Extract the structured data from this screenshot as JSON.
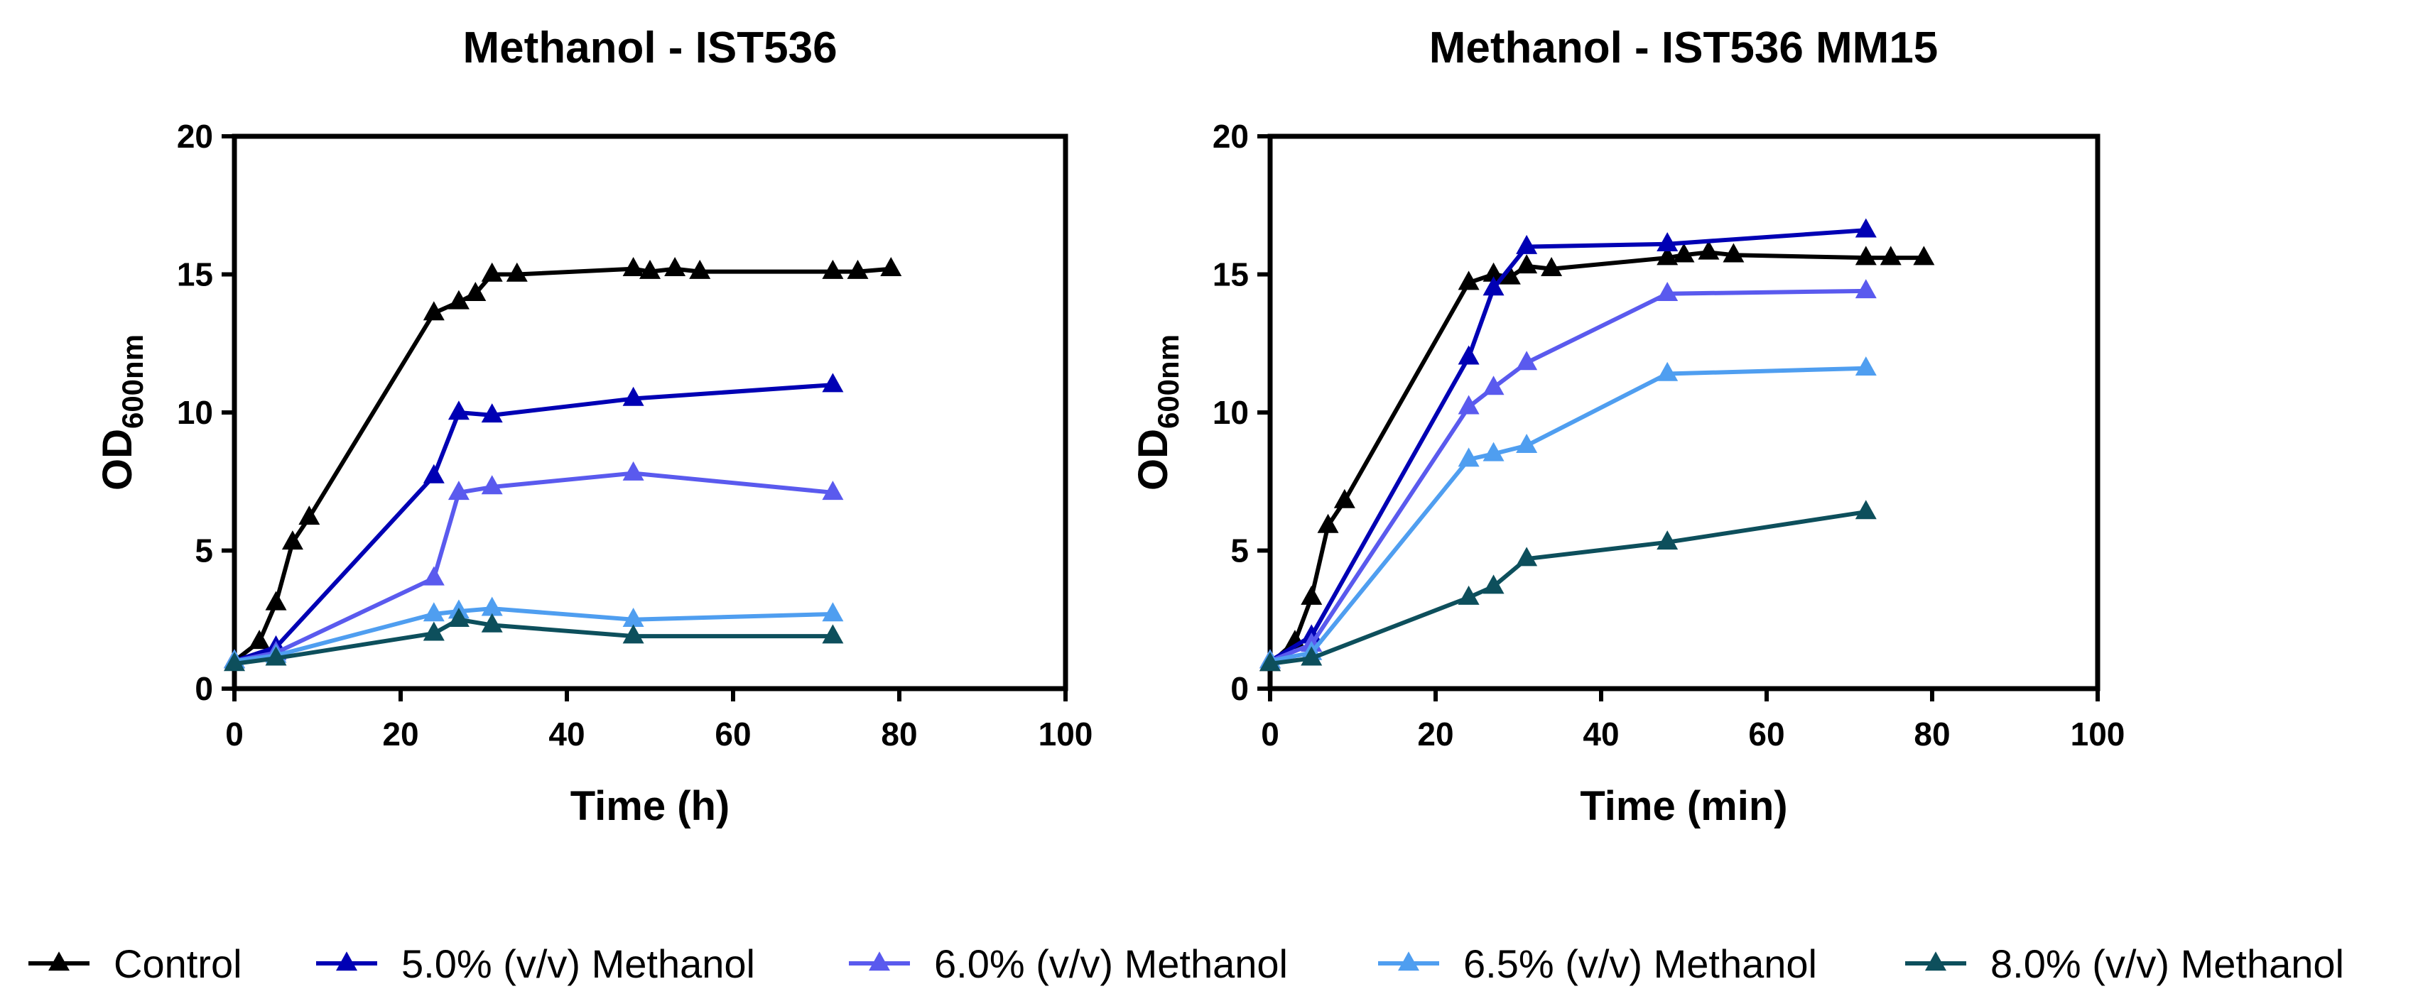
{
  "colors": {
    "control": "#000000",
    "m50": "#0000b4",
    "m60": "#5a5aee",
    "m65": "#4f9ef0",
    "m80": "#0d4f5c"
  },
  "legend": [
    {
      "key": "control",
      "label": "Control"
    },
    {
      "key": "m50",
      "label": "5.0% (v/v) Methanol"
    },
    {
      "key": "m60",
      "label": "6.0% (v/v) Methanol"
    },
    {
      "key": "m65",
      "label": "6.5% (v/v) Methanol"
    },
    {
      "key": "m80",
      "label": "8.0% (v/v) Methanol"
    }
  ],
  "chart_data": [
    {
      "type": "line",
      "title": "Methanol - IST536",
      "xlabel": "Time (h)",
      "ylabel_main": "OD",
      "ylabel_sub": "600nm",
      "xlim": [
        0,
        100
      ],
      "ylim": [
        0,
        20
      ],
      "xticks": [
        0,
        20,
        40,
        60,
        80,
        100
      ],
      "yticks": [
        0,
        5,
        10,
        15,
        20
      ],
      "grid": false,
      "series": [
        {
          "key": "control",
          "name": "Control",
          "x": [
            0,
            3,
            5,
            7,
            9,
            24,
            27,
            29,
            31,
            34,
            48,
            50,
            53,
            56,
            72,
            75,
            79
          ],
          "y": [
            1.0,
            1.7,
            3.1,
            5.3,
            6.2,
            13.6,
            14.0,
            14.3,
            15.0,
            15.0,
            15.2,
            15.1,
            15.2,
            15.1,
            15.1,
            15.1,
            15.2
          ]
        },
        {
          "key": "m50",
          "name": "5.0% (v/v) Methanol",
          "x": [
            0,
            5,
            24,
            27,
            31,
            48,
            72
          ],
          "y": [
            1.0,
            1.5,
            7.7,
            10.0,
            9.9,
            10.5,
            11.0
          ]
        },
        {
          "key": "m60",
          "name": "6.0% (v/v) Methanol",
          "x": [
            0,
            5,
            24,
            27,
            31,
            48,
            72
          ],
          "y": [
            1.0,
            1.3,
            4.0,
            7.1,
            7.3,
            7.8,
            7.1
          ]
        },
        {
          "key": "m65",
          "name": "6.5% (v/v) Methanol",
          "x": [
            0,
            5,
            24,
            27,
            31,
            48,
            72
          ],
          "y": [
            1.0,
            1.2,
            2.7,
            2.8,
            2.9,
            2.5,
            2.7
          ]
        },
        {
          "key": "m80",
          "name": "8.0% (v/v) Methanol",
          "x": [
            0,
            5,
            24,
            27,
            31,
            48,
            72
          ],
          "y": [
            0.9,
            1.1,
            2.0,
            2.5,
            2.3,
            1.9,
            1.9
          ]
        }
      ]
    },
    {
      "type": "line",
      "title": "Methanol - IST536 MM15",
      "xlabel": "Time (min)",
      "ylabel_main": "OD",
      "ylabel_sub": "600nm",
      "xlim": [
        0,
        100
      ],
      "ylim": [
        0,
        20
      ],
      "xticks": [
        0,
        20,
        40,
        60,
        80,
        100
      ],
      "yticks": [
        0,
        5,
        10,
        15,
        20
      ],
      "grid": false,
      "series": [
        {
          "key": "control",
          "name": "Control",
          "x": [
            0,
            3,
            5,
            7,
            9,
            24,
            27,
            29,
            31,
            34,
            48,
            50,
            53,
            56,
            72,
            75,
            79
          ],
          "y": [
            0.9,
            1.7,
            3.3,
            5.9,
            6.8,
            14.7,
            15.0,
            14.9,
            15.3,
            15.2,
            15.6,
            15.7,
            15.8,
            15.7,
            15.6,
            15.6,
            15.6
          ]
        },
        {
          "key": "m50",
          "name": "5.0% (v/v) Methanol",
          "x": [
            0,
            5,
            24,
            27,
            31,
            48,
            72
          ],
          "y": [
            1.0,
            1.9,
            12.0,
            14.5,
            16.0,
            16.1,
            16.6
          ]
        },
        {
          "key": "m60",
          "name": "6.0% (v/v) Methanol",
          "x": [
            0,
            5,
            24,
            27,
            31,
            48,
            72
          ],
          "y": [
            1.0,
            1.6,
            10.2,
            10.9,
            11.8,
            14.3,
            14.4
          ]
        },
        {
          "key": "m65",
          "name": "6.5% (v/v) Methanol",
          "x": [
            0,
            5,
            24,
            27,
            31,
            48,
            72
          ],
          "y": [
            1.0,
            1.3,
            8.3,
            8.5,
            8.8,
            11.4,
            11.6
          ]
        },
        {
          "key": "m80",
          "name": "8.0% (v/v) Methanol",
          "x": [
            0,
            5,
            24,
            27,
            31,
            48,
            72
          ],
          "y": [
            0.9,
            1.1,
            3.3,
            3.7,
            4.7,
            5.3,
            6.4
          ]
        }
      ]
    }
  ]
}
